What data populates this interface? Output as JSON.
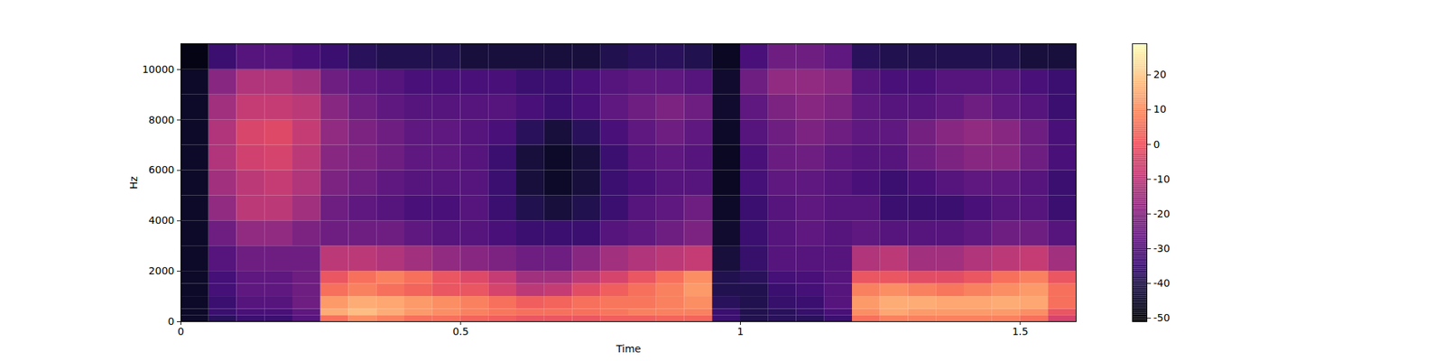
{
  "chart_data": {
    "type": "heatmap",
    "x_label": "Time",
    "y_label": "Hz",
    "color": "magma",
    "xlim": [
      0,
      1.6
    ],
    "ylim": [
      0,
      11025
    ],
    "xticks": [
      0,
      0.5,
      1,
      1.5
    ],
    "yticks": [
      0,
      2000,
      4000,
      6000,
      8000,
      10000
    ],
    "x_edges": [
      0,
      0.05,
      0.1,
      0.15,
      0.2,
      0.25,
      0.3,
      0.35,
      0.4,
      0.45,
      0.5,
      0.55,
      0.6,
      0.65,
      0.7,
      0.75,
      0.8,
      0.85,
      0.9,
      0.95,
      1.0,
      1.05,
      1.1,
      1.15,
      1.2,
      1.25,
      1.3,
      1.35,
      1.4,
      1.45,
      1.5,
      1.55,
      1.6
    ],
    "y_edges": [
      0,
      250,
      500,
      1000,
      1500,
      2000,
      3000,
      4000,
      5000,
      6000,
      7000,
      8000,
      9000,
      10000,
      11025
    ],
    "values": [
      [
        -45,
        -38,
        -35,
        -35,
        -30,
        5,
        10,
        8,
        5,
        5,
        3,
        2,
        0,
        0,
        0,
        2,
        2,
        3,
        3,
        -35,
        -40,
        -38,
        -38,
        -35,
        5,
        8,
        8,
        8,
        8,
        8,
        5,
        -5
      ],
      [
        -45,
        -35,
        -32,
        -32,
        -28,
        15,
        18,
        15,
        12,
        10,
        8,
        6,
        5,
        5,
        5,
        6,
        8,
        8,
        8,
        -35,
        -40,
        -38,
        -36,
        -32,
        10,
        14,
        12,
        12,
        12,
        12,
        10,
        0
      ],
      [
        -45,
        -35,
        -30,
        -30,
        -25,
        12,
        15,
        14,
        12,
        10,
        8,
        5,
        2,
        3,
        5,
        6,
        6,
        8,
        10,
        -38,
        -40,
        -36,
        -35,
        -30,
        12,
        15,
        15,
        14,
        14,
        15,
        14,
        5
      ],
      [
        -45,
        -33,
        -28,
        -28,
        -25,
        5,
        8,
        5,
        3,
        0,
        0,
        -5,
        -10,
        -8,
        -2,
        2,
        5,
        8,
        12,
        -40,
        -40,
        -35,
        -33,
        -30,
        8,
        10,
        8,
        6,
        8,
        10,
        12,
        5
      ],
      [
        -45,
        -33,
        -28,
        -28,
        -25,
        0,
        5,
        8,
        5,
        0,
        -3,
        -8,
        -15,
        -15,
        -10,
        -5,
        0,
        5,
        10,
        -40,
        -38,
        -33,
        -32,
        -30,
        0,
        0,
        -2,
        -2,
        0,
        5,
        8,
        0
      ],
      [
        -45,
        -30,
        -25,
        -25,
        -25,
        -10,
        -10,
        -12,
        -15,
        -18,
        -20,
        -22,
        -25,
        -25,
        -20,
        -15,
        -12,
        -10,
        -8,
        -42,
        -36,
        -30,
        -30,
        -30,
        -12,
        -10,
        -15,
        -15,
        -12,
        -10,
        -8,
        -15
      ],
      [
        -45,
        -25,
        -18,
        -18,
        -22,
        -25,
        -25,
        -25,
        -28,
        -30,
        -30,
        -32,
        -35,
        -35,
        -35,
        -30,
        -28,
        -25,
        -22,
        -44,
        -35,
        -30,
        -28,
        -30,
        -28,
        -30,
        -30,
        -30,
        -28,
        -25,
        -25,
        -30
      ],
      [
        -45,
        -18,
        -10,
        -10,
        -15,
        -25,
        -28,
        -30,
        -32,
        -32,
        -30,
        -35,
        -40,
        -42,
        -40,
        -35,
        -30,
        -28,
        -25,
        -45,
        -35,
        -30,
        -28,
        -30,
        -30,
        -35,
        -35,
        -35,
        -32,
        -30,
        -30,
        -35
      ],
      [
        -45,
        -15,
        -10,
        -8,
        -12,
        -22,
        -25,
        -28,
        -30,
        -30,
        -30,
        -35,
        -42,
        -45,
        -42,
        -35,
        -32,
        -30,
        -30,
        -46,
        -33,
        -28,
        -28,
        -30,
        -32,
        -35,
        -32,
        -30,
        -28,
        -28,
        -30,
        -35
      ],
      [
        -45,
        -12,
        -6,
        -5,
        -10,
        -20,
        -22,
        -25,
        -28,
        -28,
        -30,
        -35,
        -42,
        -45,
        -42,
        -35,
        -30,
        -28,
        -30,
        -46,
        -32,
        -26,
        -25,
        -28,
        -30,
        -30,
        -25,
        -22,
        -20,
        -20,
        -25,
        -32
      ],
      [
        -45,
        -12,
        -4,
        -3,
        -8,
        -18,
        -22,
        -25,
        -28,
        -28,
        -30,
        -32,
        -38,
        -42,
        -38,
        -32,
        -28,
        -25,
        -28,
        -45,
        -30,
        -25,
        -22,
        -25,
        -28,
        -28,
        -24,
        -20,
        -18,
        -20,
        -25,
        -32
      ],
      [
        -45,
        -15,
        -8,
        -8,
        -10,
        -20,
        -25,
        -28,
        -30,
        -30,
        -30,
        -30,
        -32,
        -35,
        -32,
        -28,
        -25,
        -22,
        -25,
        -44,
        -28,
        -22,
        -20,
        -22,
        -28,
        -30,
        -30,
        -28,
        -25,
        -28,
        -30,
        -35
      ],
      [
        -45,
        -20,
        -12,
        -12,
        -15,
        -25,
        -28,
        -30,
        -32,
        -32,
        -32,
        -32,
        -35,
        -35,
        -32,
        -30,
        -28,
        -28,
        -30,
        -44,
        -25,
        -18,
        -18,
        -20,
        -30,
        -32,
        -32,
        -30,
        -30,
        -30,
        -32,
        -35
      ],
      [
        -48,
        -35,
        -30,
        -30,
        -32,
        -35,
        -38,
        -40,
        -40,
        -40,
        -42,
        -42,
        -42,
        -42,
        -42,
        -40,
        -38,
        -38,
        -40,
        -46,
        -32,
        -25,
        -25,
        -28,
        -38,
        -40,
        -40,
        -40,
        -40,
        -40,
        -42,
        -42
      ]
    ],
    "colorbar": {
      "range": [
        -51,
        29
      ],
      "ticks": [
        -50,
        -40,
        -30,
        -20,
        -10,
        0,
        10,
        20
      ]
    }
  }
}
